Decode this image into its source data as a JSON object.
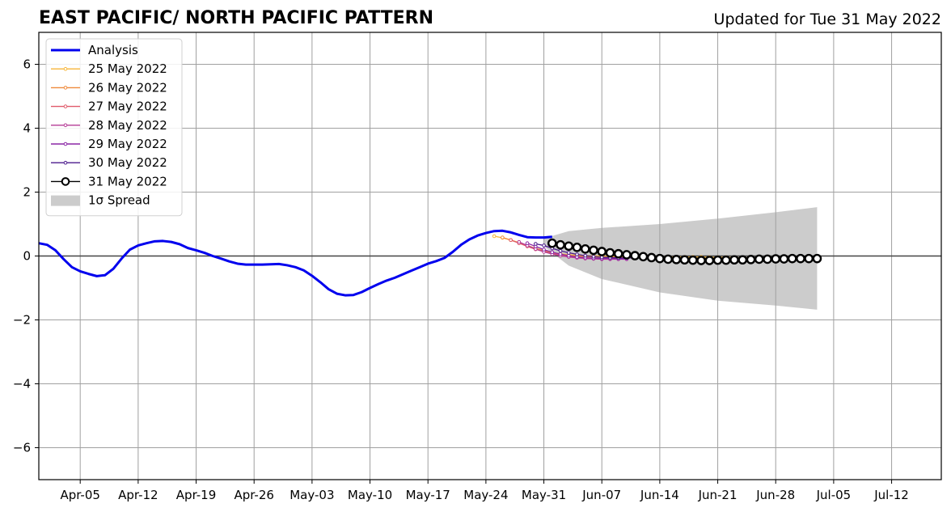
{
  "chart_data": {
    "type": "line",
    "title": "EAST PACIFIC/ NORTH PACIFIC PATTERN",
    "subtitle": "Updated for Tue 31 May 2022",
    "xlabel": "",
    "ylabel": "",
    "xlim": [
      "2022-03-31",
      "2022-07-18"
    ],
    "ylim": [
      -7,
      7
    ],
    "x_ticks": [
      "Apr-05",
      "Apr-12",
      "Apr-19",
      "Apr-26",
      "May-03",
      "May-10",
      "May-17",
      "May-24",
      "May-31",
      "Jun-07",
      "Jun-14",
      "Jun-21",
      "Jun-28",
      "Jul-05",
      "Jul-12"
    ],
    "x_tick_dates": [
      "2022-04-05",
      "2022-04-12",
      "2022-04-19",
      "2022-04-26",
      "2022-05-03",
      "2022-05-10",
      "2022-05-17",
      "2022-05-24",
      "2022-05-31",
      "2022-06-07",
      "2022-06-14",
      "2022-06-21",
      "2022-06-28",
      "2022-07-05",
      "2022-07-12"
    ],
    "y_ticks": [
      -6,
      -4,
      -2,
      0,
      2,
      4,
      6
    ],
    "y_tick_labels": [
      "−6",
      "−4",
      "−2",
      "0",
      "2",
      "4",
      "6"
    ],
    "grid": true,
    "legend_position": "top-left",
    "analysis": {
      "name": "Analysis",
      "color": "#0000ee",
      "start": "2022-03-31",
      "values": [
        0.4,
        0.35,
        0.18,
        -0.1,
        -0.35,
        -0.48,
        -0.56,
        -0.63,
        -0.6,
        -0.4,
        -0.08,
        0.2,
        0.33,
        0.4,
        0.46,
        0.47,
        0.44,
        0.37,
        0.25,
        0.18,
        0.1,
        0.0,
        -0.08,
        -0.17,
        -0.24,
        -0.27,
        -0.27,
        -0.27,
        -0.26,
        -0.25,
        -0.29,
        -0.35,
        -0.45,
        -0.62,
        -0.82,
        -1.04,
        -1.18,
        -1.23,
        -1.22,
        -1.13,
        -1.0,
        -0.88,
        -0.77,
        -0.68,
        -0.57,
        -0.46,
        -0.35,
        -0.24,
        -0.16,
        -0.06,
        0.13,
        0.35,
        0.52,
        0.64,
        0.72,
        0.78,
        0.79,
        0.74,
        0.66,
        0.59,
        0.58,
        0.58,
        0.6
      ]
    },
    "forecasts": [
      {
        "name": "25 May 2022",
        "color": "#f7b638",
        "start": "2022-05-25",
        "values": [
          0.62,
          0.57,
          0.5,
          0.42,
          0.33,
          0.24,
          0.17,
          0.11,
          0.07,
          0.04,
          0.02,
          0.01,
          0.0,
          0.0,
          -0.01,
          -0.02,
          -0.02,
          -0.03,
          -0.03,
          -0.03,
          -0.03,
          -0.03,
          -0.03,
          -0.03,
          -0.03,
          -0.03,
          -0.04,
          -0.04,
          -0.04,
          -0.05,
          -0.05,
          -0.05,
          -0.05,
          -0.05,
          -0.05,
          -0.05,
          -0.05
        ]
      },
      {
        "name": "26 May 2022",
        "color": "#ef8a3c",
        "start": "2022-05-26",
        "values": [
          0.58,
          0.5,
          0.41,
          0.32,
          0.23,
          0.16,
          0.1,
          0.05,
          0.02,
          0.0,
          -0.02,
          -0.03,
          -0.04,
          -0.04,
          -0.05,
          -0.05
        ]
      },
      {
        "name": "27 May 2022",
        "color": "#e05a6a",
        "start": "2022-05-27",
        "values": [
          0.5,
          0.4,
          0.3,
          0.21,
          0.14,
          0.08,
          0.03,
          -0.01,
          -0.04,
          -0.06,
          -0.07,
          -0.08,
          -0.08,
          -0.08,
          -0.09
        ]
      },
      {
        "name": "28 May 2022",
        "color": "#b53b96",
        "start": "2022-05-28",
        "values": [
          0.44,
          0.33,
          0.22,
          0.13,
          0.06,
          0.01,
          -0.03,
          -0.06,
          -0.08,
          -0.09,
          -0.1,
          -0.1,
          -0.1,
          -0.1
        ]
      },
      {
        "name": "29 May 2022",
        "color": "#8b26a6",
        "start": "2022-05-29",
        "values": [
          0.4,
          0.3,
          0.2,
          0.12,
          0.06,
          0.01,
          -0.03,
          -0.05,
          -0.07,
          -0.08,
          -0.08,
          -0.09,
          -0.09
        ]
      },
      {
        "name": "30 May 2022",
        "color": "#4b1a8c",
        "start": "2022-05-30",
        "values": [
          0.38,
          0.33,
          0.24,
          0.16,
          0.1,
          0.05,
          0.01,
          -0.02,
          -0.04,
          -0.05,
          -0.06,
          -0.06,
          -0.06
        ]
      },
      {
        "name": "31 May 2022",
        "color": "#000000",
        "marker": "open-circle",
        "start": "2022-06-01",
        "values": [
          0.4,
          0.35,
          0.31,
          0.27,
          0.22,
          0.18,
          0.14,
          0.1,
          0.07,
          0.04,
          0.01,
          -0.02,
          -0.05,
          -0.08,
          -0.1,
          -0.11,
          -0.12,
          -0.13,
          -0.14,
          -0.14,
          -0.13,
          -0.13,
          -0.12,
          -0.12,
          -0.11,
          -0.1,
          -0.1,
          -0.09,
          -0.09,
          -0.08,
          -0.08,
          -0.08,
          -0.08
        ]
      }
    ],
    "spread": {
      "name": "1σ Spread",
      "color": "#cccccc",
      "x": [
        "2022-05-31",
        "2022-06-03",
        "2022-06-07",
        "2022-06-14",
        "2022-06-21",
        "2022-06-28",
        "2022-07-03"
      ],
      "upper": [
        0.55,
        0.78,
        0.88,
        1.0,
        1.17,
        1.37,
        1.53
      ],
      "lower": [
        0.3,
        -0.3,
        -0.72,
        -1.14,
        -1.4,
        -1.55,
        -1.68
      ]
    }
  }
}
